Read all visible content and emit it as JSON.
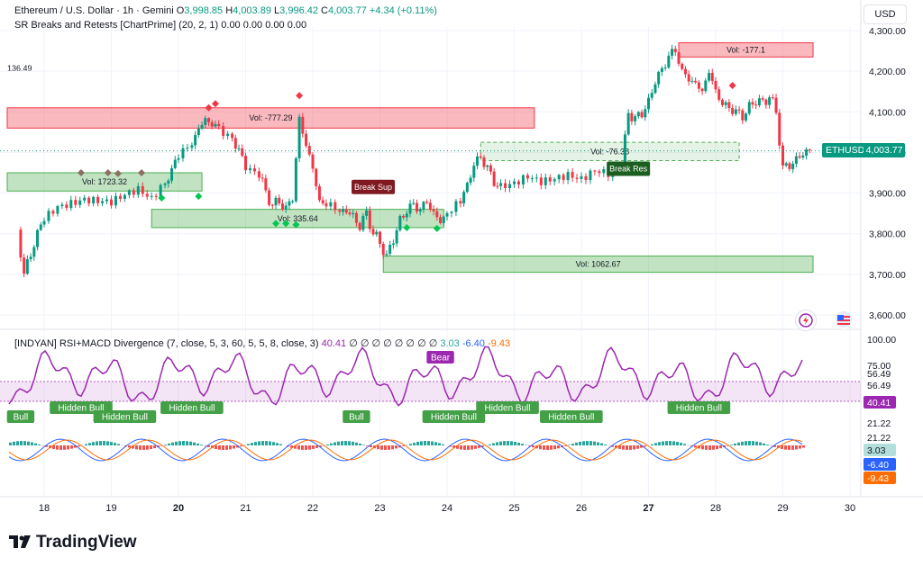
{
  "header": {
    "symbol_line": "Ethereum / U.S. Dollar · 1h · Gemini",
    "open_label": "O",
    "open_value": "3,998.85",
    "high_label": "H",
    "high_value": "4,003.89",
    "low_label": "L",
    "low_value": "3,996.42",
    "close_label": "C",
    "close_value": "4,003.77",
    "change": "+4.34 (+0.11%)",
    "indicator_name": "SR Breaks and Retests [ChartPrime] (20, 2, 1)",
    "indicator_values": [
      "0.00",
      "0.00",
      "0.00",
      "0.00"
    ],
    "currency_button": "USD",
    "left_cut_label": "136.49"
  },
  "price_tag": {
    "symbol": "ETHUSD",
    "value": "4,003.77"
  },
  "rsi_legend": {
    "name": "[INDYAN] RSI+MACD Divergence (7, close, 5, 3, 60, 5, 5, 8, close, 3)",
    "value_rsi": "40.41",
    "empty_marks": "∅ ∅ ∅ ∅ ∅ ∅ ∅ ∅",
    "value_a": "3.03",
    "value_b": "-6.40",
    "value_c": "-9.43"
  },
  "rsi_axis_labels": [
    "100.00",
    "75.00",
    "56.49",
    "56.49",
    "40.41",
    "21.22",
    "21.22",
    "3.03",
    "-6.40",
    "-9.43"
  ],
  "branding": "TradingView",
  "colors": {
    "up": "#089981",
    "down": "#f23645",
    "rsi": "#9c27b0",
    "macd": "#2962ff",
    "signal": "#ff6d00",
    "green_zone": "#4caf50",
    "red_zone": "#f23645"
  },
  "chart_data": {
    "type": "candlestick",
    "x_ticks": [
      "18",
      "19",
      "20",
      "21",
      "22",
      "23",
      "24",
      "25",
      "26",
      "27",
      "28",
      "29",
      "30"
    ],
    "y_ticks": [
      3600,
      3700,
      3800,
      3900,
      4000,
      4100,
      4200,
      4300
    ],
    "y_tick_labels": [
      "3,600.00",
      "3,700.00",
      "3,800.00",
      "3,900.00",
      "4,000.00",
      "4,100.00",
      "4,200.00",
      "4,300.00"
    ],
    "ylim": [
      3560,
      4320
    ],
    "close_path": [
      [
        17.6,
        3810
      ],
      [
        17.7,
        3700
      ],
      [
        17.8,
        3750
      ],
      [
        17.9,
        3800
      ],
      [
        18.0,
        3840
      ],
      [
        18.2,
        3870
      ],
      [
        18.4,
        3880
      ],
      [
        18.6,
        3890
      ],
      [
        18.8,
        3885
      ],
      [
        19.0,
        3880
      ],
      [
        19.2,
        3895
      ],
      [
        19.4,
        3905
      ],
      [
        19.6,
        3880
      ],
      [
        19.8,
        3920
      ],
      [
        19.9,
        3960
      ],
      [
        20.0,
        3990
      ],
      [
        20.2,
        4020
      ],
      [
        20.3,
        4060
      ],
      [
        20.4,
        4080
      ],
      [
        20.5,
        4070
      ],
      [
        20.6,
        4060
      ],
      [
        20.8,
        4040
      ],
      [
        20.9,
        4000
      ],
      [
        21.0,
        3970
      ],
      [
        21.2,
        3950
      ],
      [
        21.3,
        3900
      ],
      [
        21.4,
        3870
      ],
      [
        21.5,
        3880
      ],
      [
        21.6,
        3860
      ],
      [
        21.7,
        3890
      ],
      [
        21.8,
        4080
      ],
      [
        21.9,
        4020
      ],
      [
        22.0,
        3960
      ],
      [
        22.1,
        3880
      ],
      [
        22.2,
        3870
      ],
      [
        22.4,
        3850
      ],
      [
        22.5,
        3860
      ],
      [
        22.6,
        3840
      ],
      [
        22.7,
        3820
      ],
      [
        22.8,
        3850
      ],
      [
        22.9,
        3800
      ],
      [
        23.0,
        3780
      ],
      [
        23.1,
        3740
      ],
      [
        23.2,
        3790
      ],
      [
        23.3,
        3830
      ],
      [
        23.4,
        3860
      ],
      [
        23.5,
        3870
      ],
      [
        23.6,
        3860
      ],
      [
        23.7,
        3880
      ],
      [
        23.8,
        3850
      ],
      [
        23.9,
        3830
      ],
      [
        24.0,
        3850
      ],
      [
        24.2,
        3880
      ],
      [
        24.3,
        3920
      ],
      [
        24.4,
        3970
      ],
      [
        24.5,
        3990
      ],
      [
        24.6,
        3960
      ],
      [
        24.7,
        3930
      ],
      [
        24.8,
        3910
      ],
      [
        25.0,
        3920
      ],
      [
        25.2,
        3940
      ],
      [
        25.4,
        3930
      ],
      [
        25.6,
        3940
      ],
      [
        25.8,
        3950
      ],
      [
        26.0,
        3940
      ],
      [
        26.2,
        3960
      ],
      [
        26.4,
        3950
      ],
      [
        26.6,
        3960
      ],
      [
        26.7,
        4100
      ],
      [
        26.8,
        4080
      ],
      [
        26.9,
        4100
      ],
      [
        27.0,
        4120
      ],
      [
        27.1,
        4180
      ],
      [
        27.2,
        4200
      ],
      [
        27.3,
        4240
      ],
      [
        27.4,
        4250
      ],
      [
        27.5,
        4200
      ],
      [
        27.6,
        4180
      ],
      [
        27.7,
        4170
      ],
      [
        27.8,
        4150
      ],
      [
        27.9,
        4200
      ],
      [
        28.0,
        4150
      ],
      [
        28.1,
        4120
      ],
      [
        28.2,
        4110
      ],
      [
        28.3,
        4100
      ],
      [
        28.4,
        4090
      ],
      [
        28.5,
        4110
      ],
      [
        28.6,
        4130
      ],
      [
        28.7,
        4120
      ],
      [
        28.8,
        4140
      ],
      [
        28.9,
        4100
      ],
      [
        29.0,
        3960
      ],
      [
        29.1,
        3970
      ],
      [
        29.2,
        3980
      ],
      [
        29.3,
        4000
      ],
      [
        29.4,
        4004
      ]
    ],
    "zones": [
      {
        "kind": "resistance",
        "label": "Vol: -777.29",
        "x0": 17.45,
        "x1": 25.3,
        "top": 4110,
        "bottom": 4060
      },
      {
        "kind": "support",
        "label": "Vol: 1723.32",
        "x0": 17.45,
        "x1": 20.35,
        "top": 3950,
        "bottom": 3905
      },
      {
        "kind": "support",
        "label": "Vol: 335.64",
        "x0": 19.6,
        "x1": 23.95,
        "top": 3860,
        "bottom": 3815
      },
      {
        "kind": "support",
        "label": "Vol: 1062.67",
        "x0": 23.05,
        "x1": 29.45,
        "top": 3745,
        "bottom": 3705
      },
      {
        "kind": "support-dashed",
        "label": "Vol: -76.38",
        "x0": 24.5,
        "x1": 28.35,
        "top": 4025,
        "bottom": 3980
      },
      {
        "kind": "resistance",
        "label": "Vol: -177.1",
        "x0": 27.45,
        "x1": 29.45,
        "top": 4270,
        "bottom": 4235
      }
    ],
    "signals": [
      {
        "text": "Break Sup",
        "x": 22.9,
        "price": 3915,
        "color": "#801922"
      },
      {
        "text": "Break Res",
        "x": 26.7,
        "price": 3960,
        "color": "#1b5e20"
      }
    ],
    "rsi": {
      "labels": [
        {
          "text": "Bull",
          "x": 17.65,
          "color": "#43a047"
        },
        {
          "text": "Hidden Bull",
          "x": 18.55,
          "color": "#43a047"
        },
        {
          "text": "Hidden Bull",
          "x": 19.2,
          "color": "#43a047"
        },
        {
          "text": "Hidden Bull",
          "x": 20.2,
          "color": "#43a047"
        },
        {
          "text": "Bull",
          "x": 22.65,
          "color": "#43a047"
        },
        {
          "text": "Bear",
          "x": 23.9,
          "color": "#9c27b0"
        },
        {
          "text": "Hidden Bull",
          "x": 24.1,
          "color": "#43a047"
        },
        {
          "text": "Hidden Bull",
          "x": 24.9,
          "color": "#43a047"
        },
        {
          "text": "Hidden Bull",
          "x": 25.85,
          "color": "#43a047"
        },
        {
          "text": "Hidden Bull",
          "x": 27.75,
          "color": "#43a047"
        }
      ]
    }
  }
}
